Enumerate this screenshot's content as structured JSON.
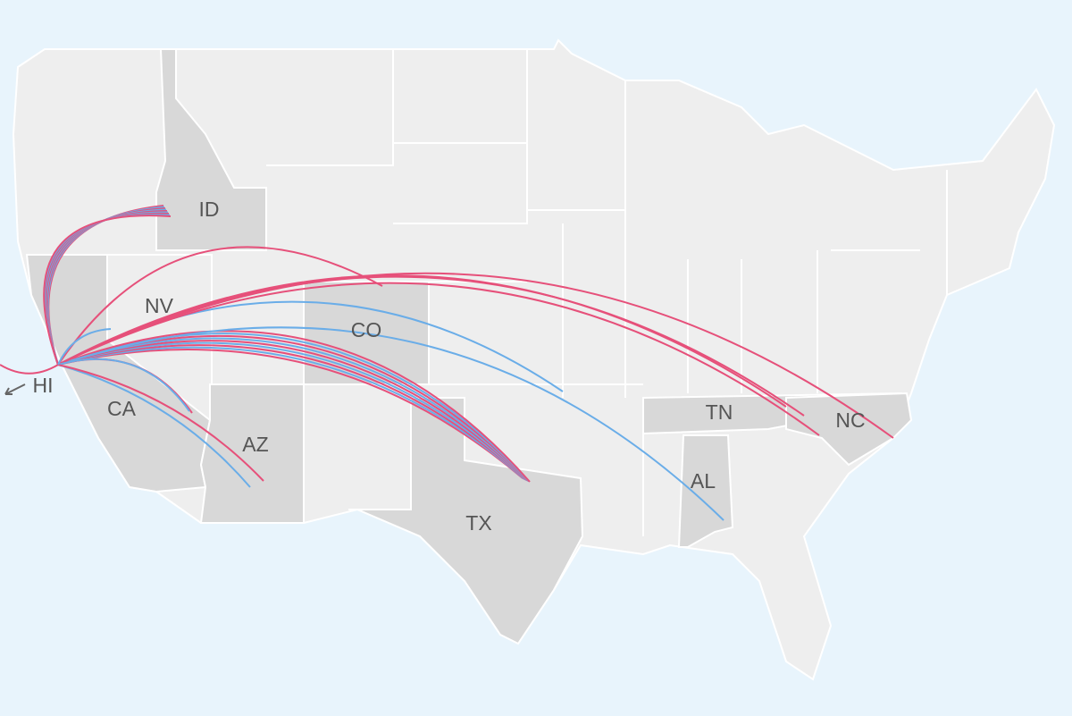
{
  "labels": [
    "ID",
    "NV",
    "CO",
    "HI",
    "CA",
    "AZ",
    "TX",
    "TN",
    "NC",
    "AL"
  ]
}
